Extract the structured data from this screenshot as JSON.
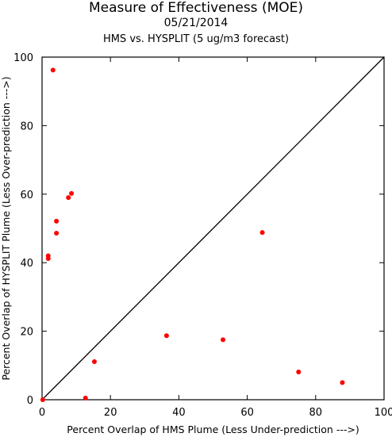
{
  "chart_data": {
    "type": "scatter",
    "title": "Measure of Effectiveness (MOE)",
    "date": "05/21/2014",
    "subtitle": "HMS vs. HYSPLIT  (5 ug/m3 forecast)",
    "xlabel": "Percent Overlap of HMS Plume (Less Under-prediction --->)",
    "ylabel": "Percent Overlap of HYSPLIT Plume (Less Over-prediction --->)",
    "xlim": [
      0,
      100
    ],
    "ylim": [
      0,
      100
    ],
    "xticks": [
      "0",
      "20",
      "40",
      "60",
      "80",
      "100"
    ],
    "yticks": [
      "0",
      "20",
      "40",
      "60",
      "80",
      "100"
    ],
    "reference_line": "y = x",
    "marker_color": "#ff0000",
    "grid": false,
    "points": [
      {
        "x": 0.2,
        "y": 0
      },
      {
        "x": 3.2,
        "y": 96.2
      },
      {
        "x": 1.8,
        "y": 42
      },
      {
        "x": 1.8,
        "y": 41.2
      },
      {
        "x": 4.2,
        "y": 52.1
      },
      {
        "x": 4.2,
        "y": 48.6
      },
      {
        "x": 7.7,
        "y": 59
      },
      {
        "x": 8.6,
        "y": 60.2
      },
      {
        "x": 12.7,
        "y": 0.5
      },
      {
        "x": 15.3,
        "y": 11.1
      },
      {
        "x": 36.4,
        "y": 18.7
      },
      {
        "x": 52.9,
        "y": 17.5
      },
      {
        "x": 64.4,
        "y": 48.8
      },
      {
        "x": 75,
        "y": 8.1
      },
      {
        "x": 87.8,
        "y": 5
      }
    ]
  }
}
